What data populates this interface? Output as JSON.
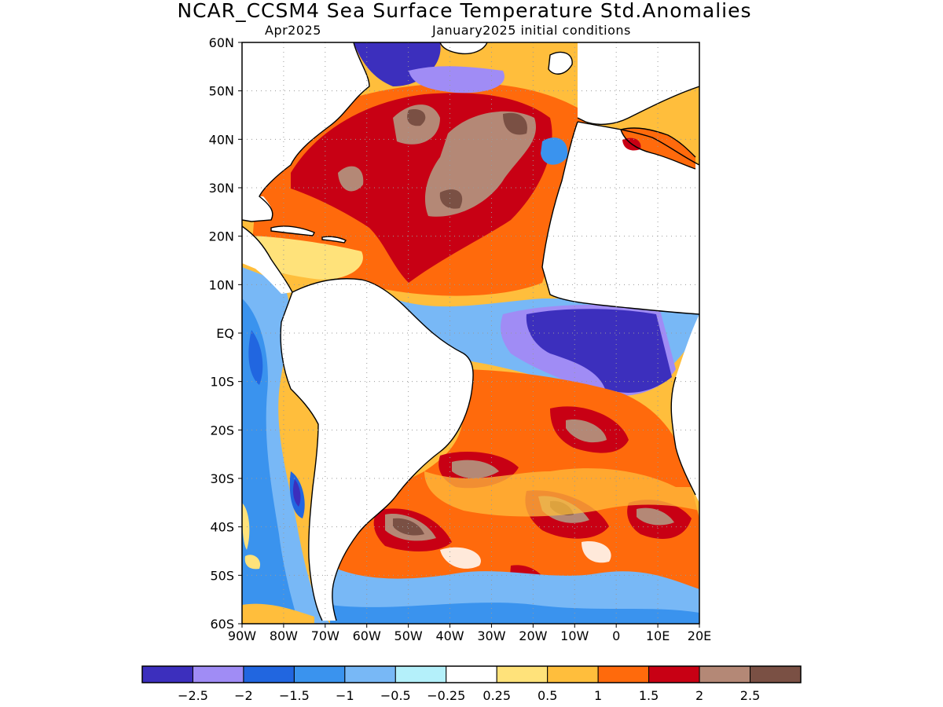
{
  "title": "NCAR_CCSM4 Sea Surface Temperature Std.Anomalies",
  "subtitle_left": "Apr2025",
  "subtitle_right": "January2025 initial conditions",
  "map": {
    "lon_range": [
      -90,
      20
    ],
    "lat_range": [
      -60,
      60
    ],
    "lon_ticks": [
      -90,
      -80,
      -70,
      -60,
      -50,
      -40,
      -30,
      -20,
      -10,
      0,
      10,
      20
    ],
    "lon_tick_labels": [
      "90W",
      "80W",
      "70W",
      "60W",
      "50W",
      "40W",
      "30W",
      "20W",
      "10W",
      "0",
      "10E",
      "20E"
    ],
    "lat_ticks": [
      60,
      50,
      40,
      30,
      20,
      10,
      0,
      -10,
      -20,
      -30,
      -40,
      -50,
      -60
    ],
    "lat_tick_labels": [
      "60N",
      "50N",
      "40N",
      "30N",
      "20N",
      "10N",
      "EQ",
      "10S",
      "20S",
      "30S",
      "40S",
      "50S",
      "60S"
    ],
    "grid": "dotted",
    "land_color": "#ffffff"
  },
  "colorbar": {
    "colors": [
      "#3c2fbd",
      "#a08cf5",
      "#2166e0",
      "#3a93ee",
      "#78b8f6",
      "#b4f0fa",
      "#ffffff",
      "#ffe27a",
      "#ffbe3c",
      "#ff6a0c",
      "#c80014",
      "#b48876",
      "#7a5044"
    ],
    "labels": [
      "-2.5",
      "-2",
      "-1.5",
      "-1",
      "-0.5",
      "-0.25",
      "0.25",
      "0.5",
      "1",
      "1.5",
      "2",
      "2.5"
    ]
  }
}
